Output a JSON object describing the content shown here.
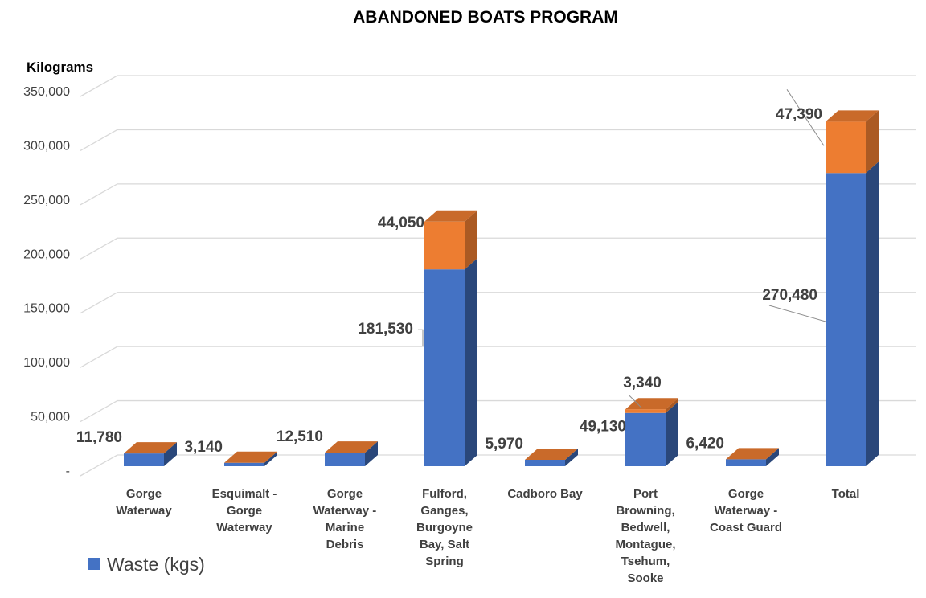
{
  "chart_data": {
    "type": "bar",
    "stacked": true,
    "three_d": true,
    "title": "ABANDONED BOATS PROGRAM",
    "ylabel": "Kilograms",
    "ylim": [
      0,
      350000
    ],
    "y_ticks": [
      0,
      50000,
      100000,
      150000,
      200000,
      250000,
      300000,
      350000
    ],
    "y_tick_labels": [
      "-",
      "50,000",
      "100,000",
      "150,000",
      "200,000",
      "250,000",
      "300,000",
      "350,000"
    ],
    "grid": true,
    "categories": [
      [
        "Gorge",
        "Waterway"
      ],
      [
        "Esquimalt -",
        "Gorge",
        "Waterway"
      ],
      [
        "Gorge",
        "Waterway -",
        "Marine",
        "Debris"
      ],
      [
        "Fulford,",
        "Ganges,",
        "Burgoyne",
        "Bay, Salt",
        "Spring"
      ],
      [
        "Cadboro Bay"
      ],
      [
        "Port",
        "Browning,",
        "Bedwell,",
        "Montague,",
        "Tsehum,",
        "Sooke"
      ],
      [
        "Gorge",
        "Waterway -",
        "Coast Guard"
      ],
      [
        "Total"
      ]
    ],
    "series": [
      {
        "name": "Waste (kgs)",
        "color": "#4472c4",
        "values": [
          11780,
          3140,
          12510,
          181530,
          5970,
          49130,
          6420,
          270480
        ],
        "labels": [
          "11,780",
          "3,140",
          "12,510",
          "181,530",
          "5,970",
          "49,130",
          "6,420",
          "270,480"
        ]
      },
      {
        "color": "#ed7d31",
        "values": [
          0,
          0,
          0,
          44050,
          0,
          3340,
          0,
          47390
        ],
        "labels": [
          "",
          "",
          "",
          "44,050",
          "",
          "3,340",
          "",
          "47,390"
        ]
      }
    ],
    "legend": {
      "position": "bottom-left",
      "entries": [
        "Waste (kgs)"
      ]
    }
  }
}
